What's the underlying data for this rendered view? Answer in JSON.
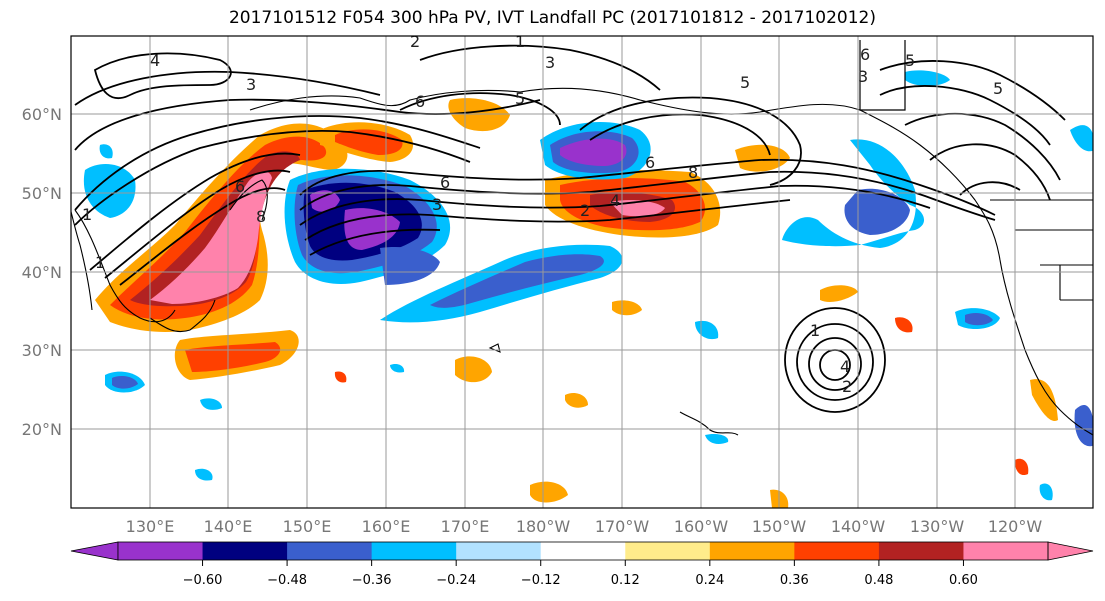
{
  "title": "2017101512 F054 300 hPa PV, IVT Landfall PC (2017101812 - 2017102012)",
  "lat_ticks": [
    "60°N",
    "50°N",
    "40°N",
    "30°N",
    "20°N"
  ],
  "lon_ticks": [
    "130°E",
    "140°E",
    "150°E",
    "160°E",
    "170°E",
    "180°W",
    "170°W",
    "160°W",
    "150°W",
    "140°W",
    "130°W",
    "120°W"
  ],
  "colorbar": {
    "colors": [
      "#9932CC",
      "#000080",
      "#3A5FCD",
      "#00BFFF",
      "#B2E2FF",
      "#FFFFFF",
      "#FFEC8B",
      "#FFA500",
      "#FF4000",
      "#B22222",
      "#FF82AB"
    ],
    "tick_labels": [
      "−0.60",
      "−0.48",
      "−0.36",
      "−0.24",
      "−0.12",
      "0.12",
      "0.24",
      "0.36",
      "0.48",
      "0.60"
    ]
  },
  "contour_labels": [
    "4",
    "3",
    "2",
    "1",
    "6",
    "3",
    "5",
    "5",
    "6",
    "5",
    "3",
    "1",
    "6",
    "8",
    "2",
    "4",
    "1",
    "6",
    "8",
    "6",
    "3",
    "1",
    "2",
    "4",
    "5"
  ]
}
